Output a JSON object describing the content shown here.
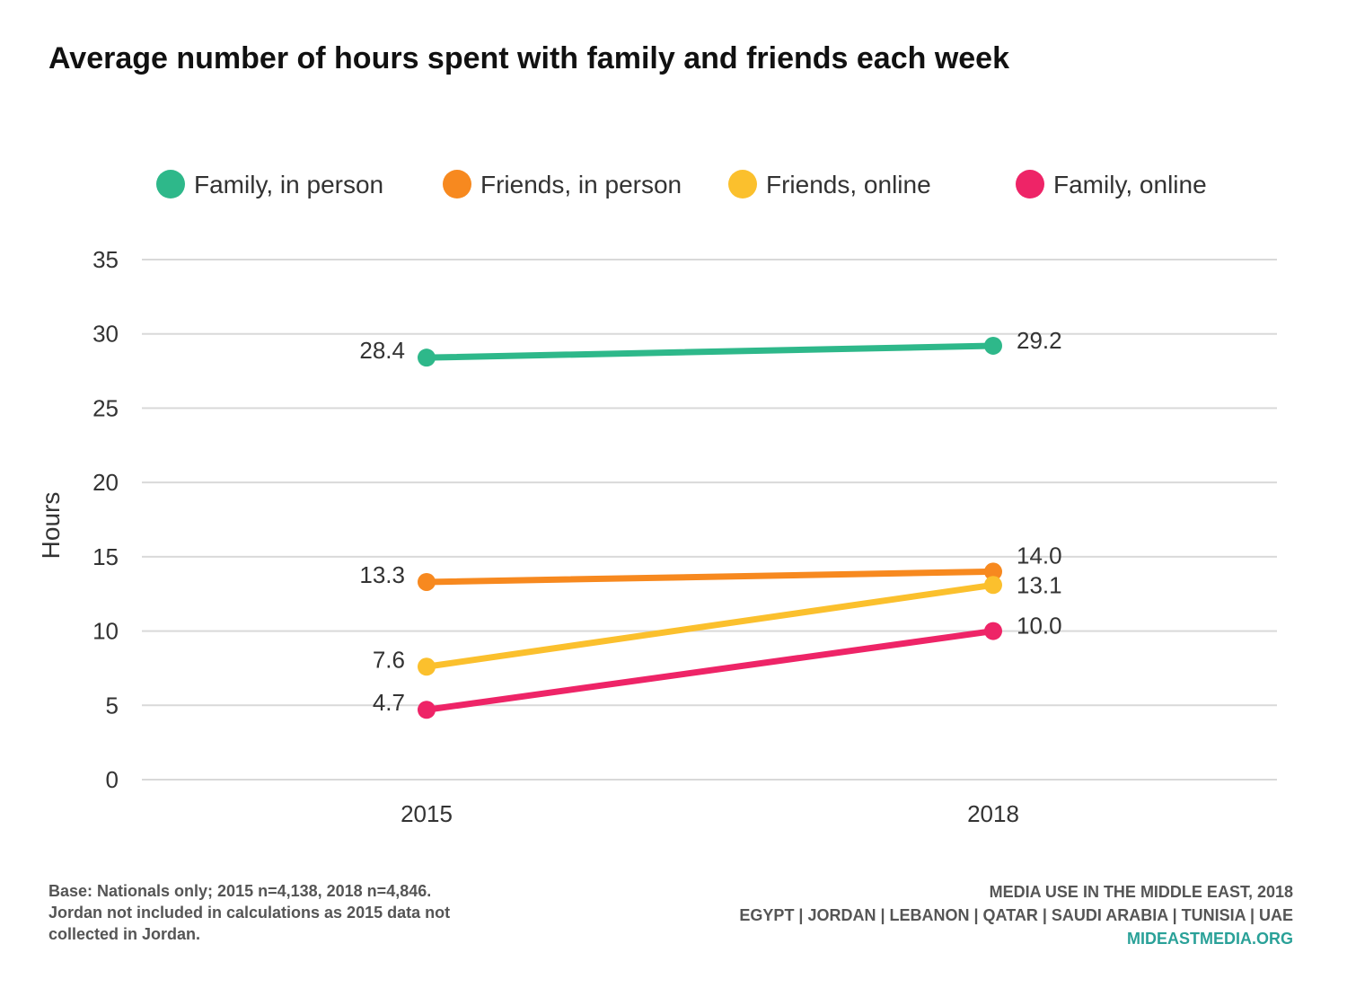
{
  "title": "Average number of hours spent with family and friends each week",
  "chart_data": {
    "type": "line",
    "title": "Average number of hours spent with family and friends each week",
    "xlabel": "",
    "ylabel": "Hours",
    "categories": [
      "2015",
      "2018"
    ],
    "ylim": [
      0,
      35
    ],
    "yticks": [
      0,
      5,
      10,
      15,
      20,
      25,
      30,
      35
    ],
    "grid": true,
    "legend_position": "top",
    "series": [
      {
        "name": "Family, in person",
        "color": "#2eb88a",
        "values": [
          28.4,
          29.2
        ],
        "labels": [
          "28.4",
          "29.2"
        ]
      },
      {
        "name": "Friends, in person",
        "color": "#f7891f",
        "values": [
          13.3,
          14.0
        ],
        "labels": [
          "13.3",
          "14.0"
        ]
      },
      {
        "name": "Friends, online",
        "color": "#fbc02d",
        "values": [
          7.6,
          13.1
        ],
        "labels": [
          "7.6",
          "13.1"
        ]
      },
      {
        "name": "Family, online",
        "color": "#ee2467",
        "values": [
          4.7,
          10.0
        ],
        "labels": [
          "4.7",
          "10.0"
        ]
      }
    ]
  },
  "footer": {
    "base_note": [
      "Base: Nationals only; 2015 n=4,138, 2018 n=4,846.",
      "Jordan not included in calculations as 2015 data not",
      "collected in Jordan."
    ],
    "source_title": "MEDIA USE IN THE MIDDLE EAST, 2018",
    "countries": "EGYPT | JORDAN | LEBANON | QATAR | SAUDI ARABIA | TUNISIA | UAE",
    "website": "MIDEASTMEDIA.ORG",
    "website_color": "#2aa198"
  }
}
